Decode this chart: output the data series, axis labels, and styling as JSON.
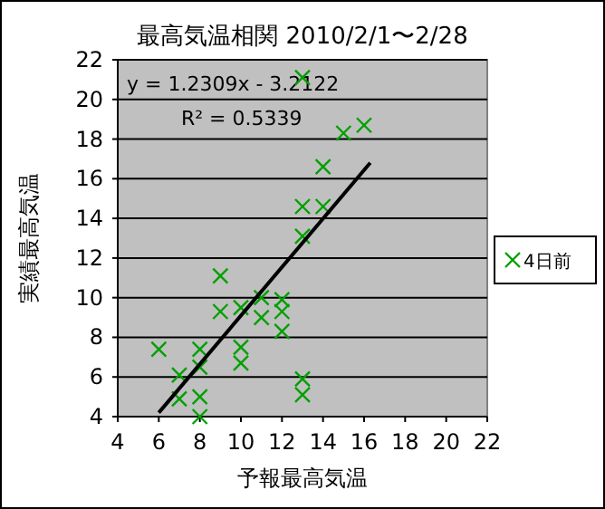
{
  "chart_data": {
    "type": "scatter",
    "title": "最高気温相関 2010/2/1〜2/28",
    "xlabel": "予報最高気温",
    "ylabel": "実績最高気温",
    "annotations": [
      "y = 1.2309x - 3.2122",
      "R² = 0.5339"
    ],
    "xlim": [
      4,
      22
    ],
    "xticks": [
      4,
      6,
      8,
      10,
      12,
      14,
      16,
      18,
      20,
      22
    ],
    "ylim": [
      4,
      22
    ],
    "yticks": [
      4,
      6,
      8,
      10,
      12,
      14,
      16,
      18,
      20,
      22
    ],
    "grid": "y",
    "legend": "right",
    "series": [
      {
        "name": "4日前",
        "type": "scatter",
        "marker": "cross",
        "color": "#00a000",
        "x": [
          13,
          15,
          16,
          14,
          13,
          14,
          13,
          9,
          9,
          10,
          11,
          12,
          12,
          11,
          12,
          6,
          8,
          10,
          10,
          8,
          7,
          13,
          7,
          8,
          13,
          8
        ],
        "values": [
          21.1,
          18.3,
          18.7,
          16.6,
          14.6,
          14.6,
          13.1,
          11.1,
          9.3,
          9.5,
          10.0,
          9.9,
          9.3,
          9.0,
          8.3,
          7.4,
          7.4,
          7.5,
          6.7,
          6.5,
          6.1,
          5.9,
          4.9,
          5.0,
          5.1,
          4.0
        ]
      },
      {
        "type": "line",
        "line_style": "solid",
        "color": "#000000",
        "x": [
          6,
          16.3
        ],
        "values": [
          4.2,
          16.8
        ]
      }
    ]
  }
}
